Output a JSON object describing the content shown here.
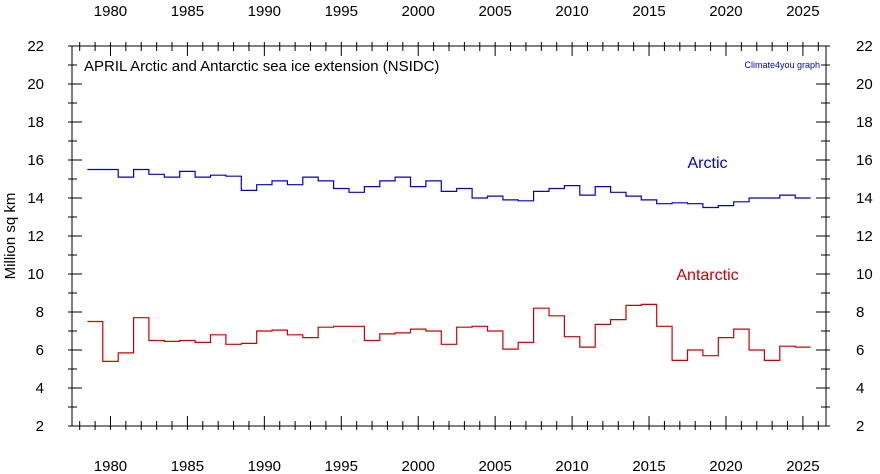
{
  "chart_data": {
    "type": "line",
    "step": true,
    "title": "APRIL Arctic and Antarctic sea ice extension (NSIDC)",
    "credit": "Climate4you graph",
    "ylabel": "Million sq km",
    "xlabel": "",
    "xlim": [
      1977.5,
      2026.5
    ],
    "ylim": [
      2,
      22
    ],
    "x_ticks": [
      1980,
      1985,
      1990,
      1995,
      2000,
      2005,
      2010,
      2015,
      2020,
      2025
    ],
    "y_ticks": [
      2,
      4,
      6,
      8,
      10,
      12,
      14,
      16,
      18,
      20,
      22
    ],
    "grid": false,
    "x": [
      1979,
      1980,
      1981,
      1982,
      1983,
      1984,
      1985,
      1986,
      1987,
      1988,
      1989,
      1990,
      1991,
      1992,
      1993,
      1994,
      1995,
      1996,
      1997,
      1998,
      1999,
      2000,
      2001,
      2002,
      2003,
      2004,
      2005,
      2006,
      2007,
      2008,
      2009,
      2010,
      2011,
      2012,
      2013,
      2014,
      2015,
      2016,
      2017,
      2018,
      2019,
      2020,
      2021,
      2022,
      2023,
      2024,
      2025
    ],
    "series": [
      {
        "name": "Arctic",
        "color": "#0000cc",
        "label_at": [
          2018.8,
          15.9
        ],
        "values": [
          15.5,
          15.5,
          15.1,
          15.5,
          15.25,
          15.1,
          15.4,
          15.1,
          15.2,
          15.15,
          14.4,
          14.7,
          14.9,
          14.7,
          15.1,
          14.9,
          14.5,
          14.3,
          14.6,
          14.9,
          15.1,
          14.6,
          14.9,
          14.35,
          14.5,
          14.0,
          14.1,
          13.9,
          13.85,
          14.35,
          14.5,
          14.65,
          14.15,
          14.6,
          14.3,
          14.1,
          13.9,
          13.7,
          13.75,
          13.7,
          13.5,
          13.6,
          13.8,
          14.0,
          14.0,
          14.15,
          14.0
        ]
      },
      {
        "name": "Antarctic",
        "color": "#cc0000",
        "label_at": [
          2018.8,
          10.0
        ],
        "values": [
          7.5,
          5.4,
          5.85,
          7.7,
          6.5,
          6.45,
          6.5,
          6.4,
          6.8,
          6.3,
          6.35,
          7.0,
          7.05,
          6.8,
          6.65,
          7.2,
          7.25,
          7.25,
          6.5,
          6.85,
          6.9,
          7.1,
          7.0,
          6.3,
          7.2,
          7.25,
          7.0,
          6.05,
          6.4,
          8.2,
          7.8,
          6.7,
          6.15,
          7.35,
          7.6,
          8.35,
          8.4,
          7.25,
          5.45,
          6.0,
          5.7,
          6.65,
          7.1,
          6.0,
          5.45,
          6.2,
          6.15
        ]
      }
    ]
  }
}
